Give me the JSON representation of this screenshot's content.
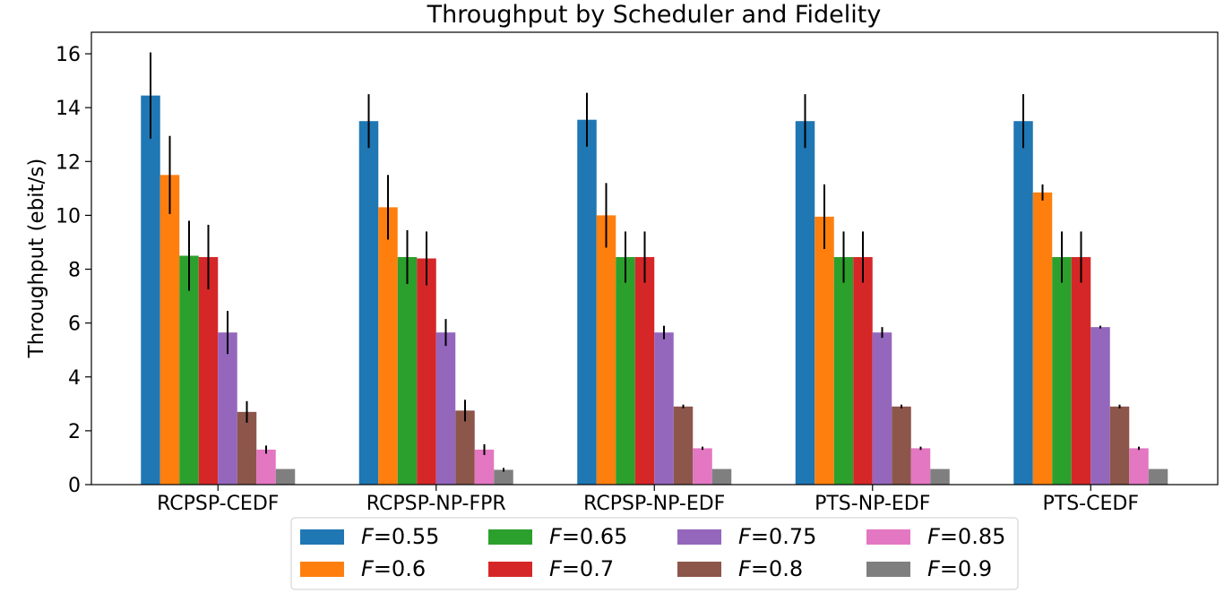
{
  "chart_data": {
    "type": "bar",
    "title": "Throughput by Scheduler and Fidelity",
    "xlabel": "",
    "ylabel": "Throughput (ebit/s)",
    "ylim": [
      0,
      16.8
    ],
    "yticks": [
      0,
      2,
      4,
      6,
      8,
      10,
      12,
      14,
      16
    ],
    "grid": false,
    "legend_position": "bottom-center",
    "categories": [
      "RCPSP-CEDF",
      "RCPSP-NP-FPR",
      "RCPSP-NP-EDF",
      "PTS-NP-EDF",
      "PTS-CEDF"
    ],
    "series": [
      {
        "name": "F=0.55",
        "legend_var": "F",
        "legend_value": "=0.55",
        "color": "#1f77b4",
        "values": [
          14.45,
          13.5,
          13.55,
          13.5,
          13.5
        ],
        "errors": [
          1.6,
          1.0,
          1.0,
          1.0,
          1.0
        ]
      },
      {
        "name": "F=0.6",
        "legend_var": "F",
        "legend_value": "=0.6",
        "color": "#ff7f0e",
        "values": [
          11.5,
          10.3,
          10.0,
          9.95,
          10.85
        ],
        "errors": [
          1.45,
          1.2,
          1.2,
          1.2,
          0.3
        ]
      },
      {
        "name": "F=0.65",
        "legend_var": "F",
        "legend_value": "=0.65",
        "color": "#2ca02c",
        "values": [
          8.5,
          8.45,
          8.45,
          8.45,
          8.45
        ],
        "errors": [
          1.3,
          1.0,
          0.95,
          0.95,
          0.95
        ]
      },
      {
        "name": "F=0.7",
        "legend_var": "F",
        "legend_value": "=0.7",
        "color": "#d62728",
        "values": [
          8.45,
          8.4,
          8.45,
          8.45,
          8.45
        ],
        "errors": [
          1.2,
          1.0,
          0.95,
          0.95,
          0.95
        ]
      },
      {
        "name": "F=0.75",
        "legend_var": "F",
        "legend_value": "=0.75",
        "color": "#9467bd",
        "values": [
          5.65,
          5.65,
          5.65,
          5.65,
          5.85
        ],
        "errors": [
          0.8,
          0.5,
          0.25,
          0.2,
          0.05
        ]
      },
      {
        "name": "F=0.8",
        "legend_var": "F",
        "legend_value": "=0.8",
        "color": "#8c564b",
        "values": [
          2.7,
          2.75,
          2.9,
          2.9,
          2.9
        ],
        "errors": [
          0.4,
          0.4,
          0.07,
          0.07,
          0.07
        ]
      },
      {
        "name": "F=0.85",
        "legend_var": "F",
        "legend_value": "=0.85",
        "color": "#e377c2",
        "values": [
          1.3,
          1.3,
          1.35,
          1.35,
          1.35
        ],
        "errors": [
          0.15,
          0.2,
          0.06,
          0.06,
          0.06
        ]
      },
      {
        "name": "F=0.9",
        "legend_var": "F",
        "legend_value": "=0.9",
        "color": "#7f7f7f",
        "values": [
          0.58,
          0.55,
          0.58,
          0.58,
          0.58
        ],
        "errors": [
          0.0,
          0.07,
          0.0,
          0.0,
          0.0
        ]
      }
    ]
  }
}
